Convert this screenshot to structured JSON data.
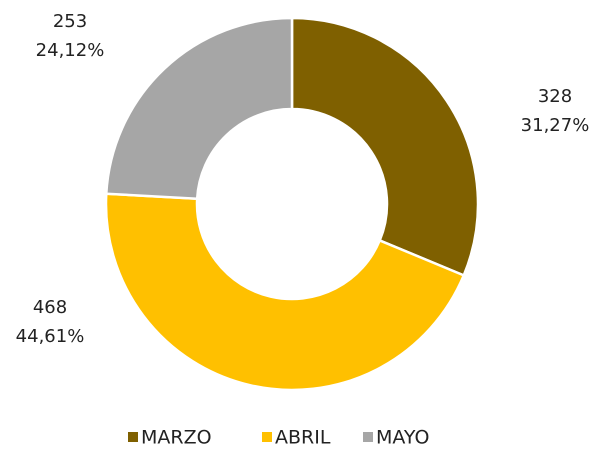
{
  "chart_data": {
    "type": "donut",
    "categories": [
      "MARZO",
      "ABRIL",
      "MAYO"
    ],
    "values": [
      328,
      468,
      253
    ],
    "percentages": [
      31.27,
      44.61,
      24.12
    ],
    "percentage_labels": [
      "31,27%",
      "44,61%",
      "24,12%"
    ],
    "colors": [
      "#7f6000",
      "#ffc000",
      "#a6a6a6"
    ],
    "legend": "bottom"
  }
}
